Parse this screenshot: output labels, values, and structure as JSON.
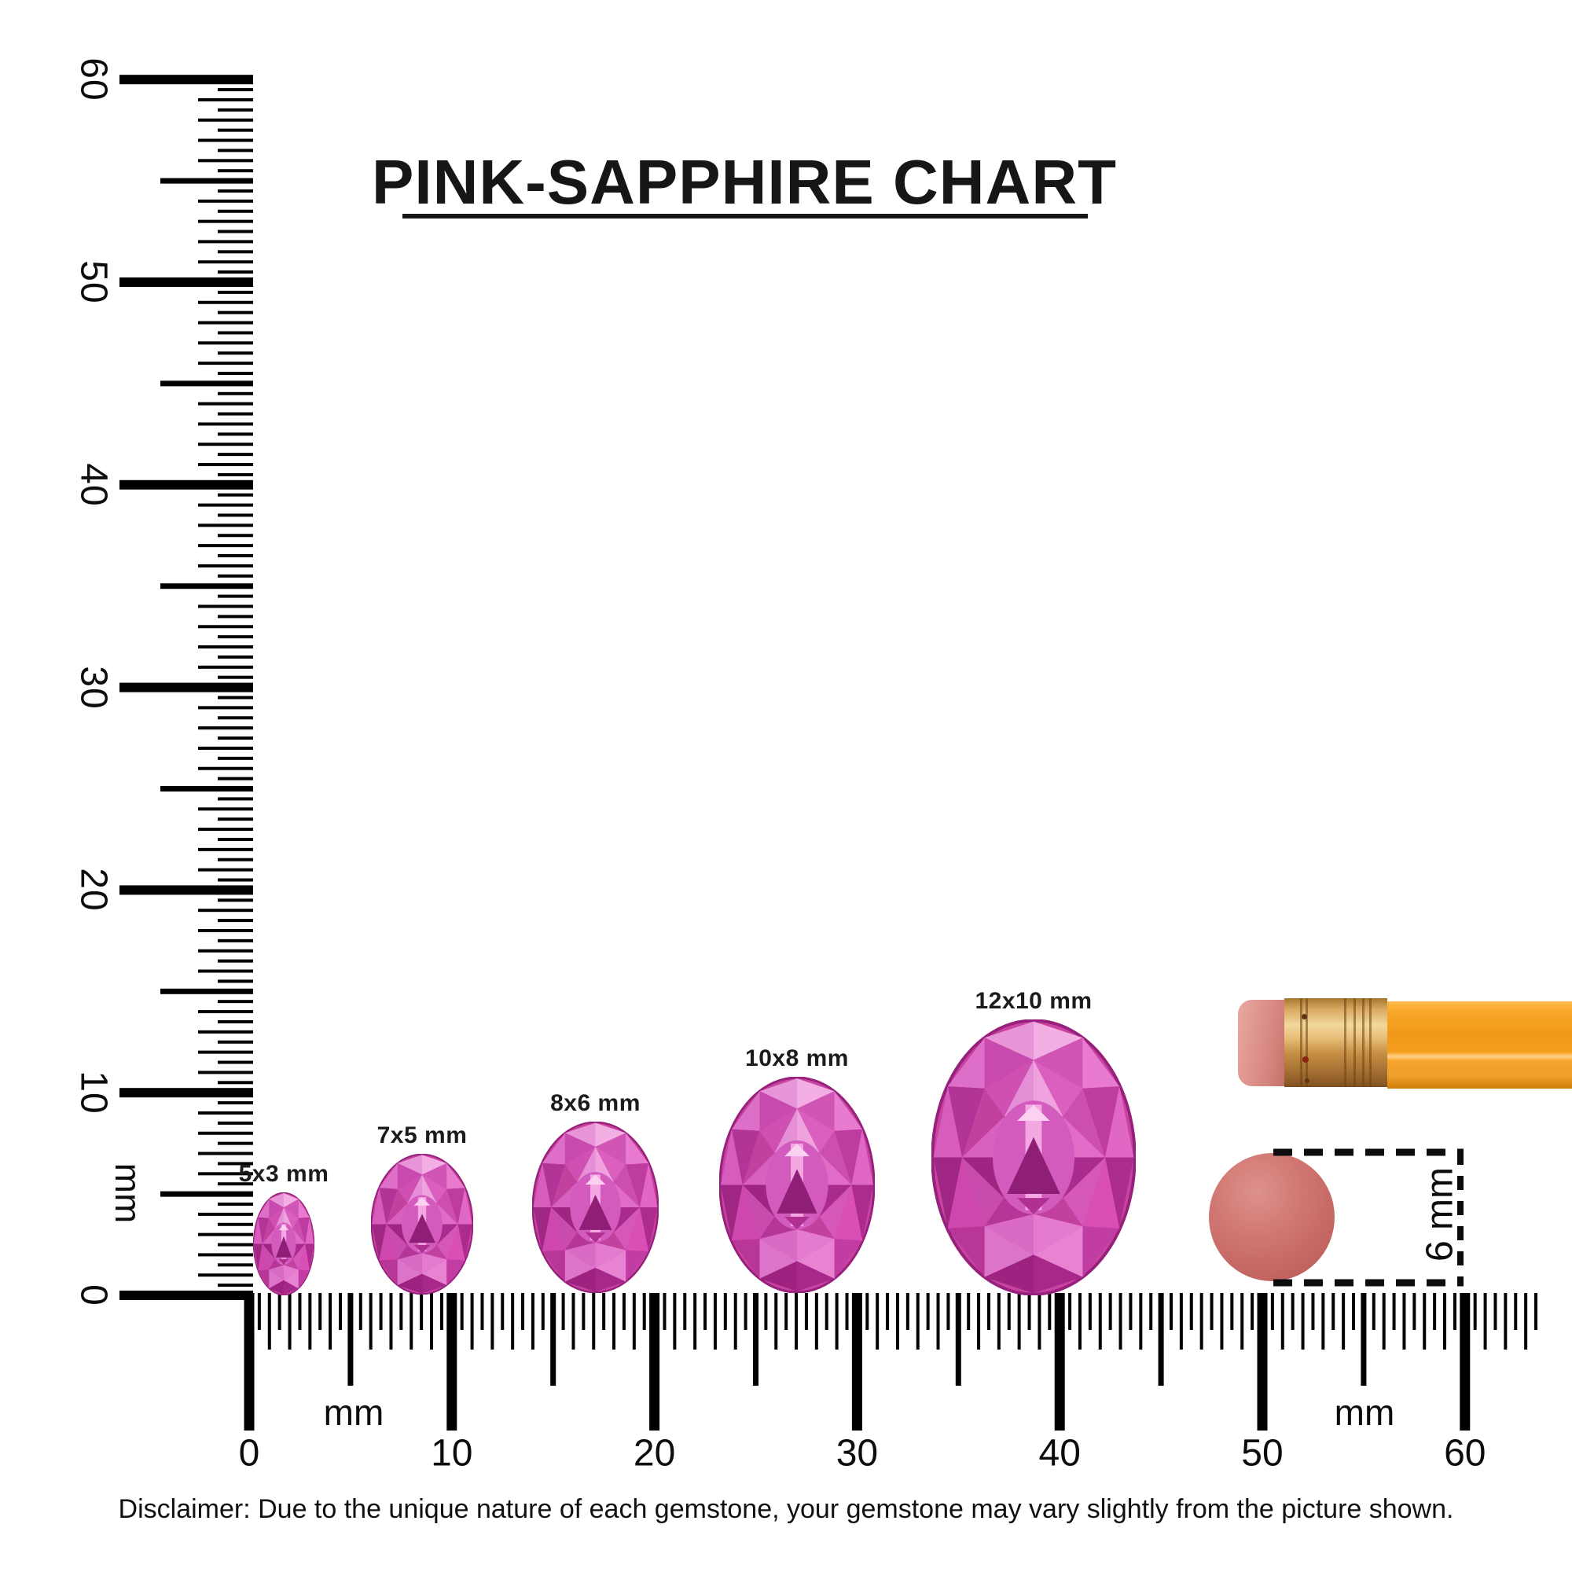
{
  "title": {
    "text": "PINK-SAPPHIRE CHART"
  },
  "rulers": {
    "unit": "mm",
    "vertical": {
      "unit_label": "mm",
      "numbers": [
        "0",
        "10",
        "20",
        "30",
        "40",
        "50",
        "60"
      ],
      "max_mm": 60
    },
    "horizontal": {
      "unit_label_left": "mm",
      "unit_label_right": "mm",
      "numbers": [
        "0",
        "10",
        "20",
        "30",
        "40",
        "50",
        "60"
      ],
      "max_mm": 60
    }
  },
  "gems": [
    {
      "label": "5x3 mm",
      "length_mm": 5,
      "width_mm": 3
    },
    {
      "label": "7x5 mm",
      "length_mm": 7,
      "width_mm": 5
    },
    {
      "label": "8x6 mm",
      "length_mm": 8,
      "width_mm": 6
    },
    {
      "label": "10x8 mm",
      "length_mm": 10,
      "width_mm": 8
    },
    {
      "label": "12x10 mm",
      "length_mm": 12,
      "width_mm": 10
    }
  ],
  "reference_objects": {
    "eraser_disc_label": "6 mm",
    "pencil": "pencil with eraser tip",
    "disc": "round eraser disc"
  },
  "disclaimer": {
    "text": "Disclaimer: Due to the unique nature of each gemstone, your gemstone may vary slightly from the picture shown."
  },
  "colors": {
    "background": "#ffffff",
    "ruler": "#000000",
    "text": "#141414",
    "gem_pink": "#d94fb6",
    "gem_pink_light": "#f3aee3",
    "gem_pink_deep": "#a02683",
    "disc": "#cb6b67",
    "pencil_body": "#f7a01c",
    "pencil_ferrule": "#d9a45c",
    "pencil_eraser": "#d8897f"
  }
}
